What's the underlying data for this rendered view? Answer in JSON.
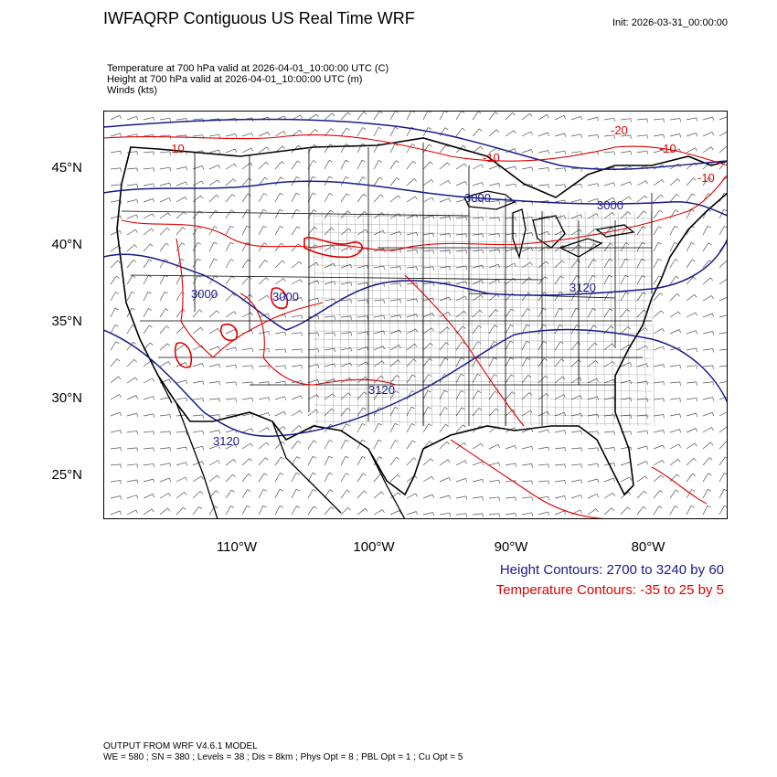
{
  "header": {
    "title": "IWFAQRP Contiguous US Real Time WRF",
    "init": "Init: 2026-03-31_00:00:00"
  },
  "fields": [
    "Temperature at 700 hPa valid at 2026-04-01_10:00:00 UTC   (C)",
    "Height at 700 hPa valid at 2026-04-01_10:00:00 UTC   (m)",
    "Winds   (kts)"
  ],
  "axes": {
    "lat_labels": [
      "45°N",
      "40°N",
      "35°N",
      "30°N",
      "25°N"
    ],
    "lon_labels": [
      "110°W",
      "100°W",
      "90°W",
      "80°W"
    ]
  },
  "contour_labels": {
    "height": [
      "3000",
      "3000",
      "3000",
      "3000",
      "3120",
      "3120",
      "3120"
    ],
    "temperature": [
      "-10",
      "-20",
      "-10",
      "-10",
      "-10"
    ]
  },
  "legend": {
    "height": "Height Contours: 2700 to 3240 by 60",
    "temperature": "Temperature Contours: -35 to 25 by 5"
  },
  "footer": {
    "line1": "OUTPUT FROM WRF V4.6.1 MODEL",
    "line2": "WE = 580 ; SN = 380 ; Levels = 38 ; Dis = 8km ; Phys Opt = 8 ; PBL Opt = 1 ; Cu Opt = 5"
  },
  "colors": {
    "height": "#1a1a8c",
    "temperature": "#e00000",
    "boundaries": "#000000"
  }
}
